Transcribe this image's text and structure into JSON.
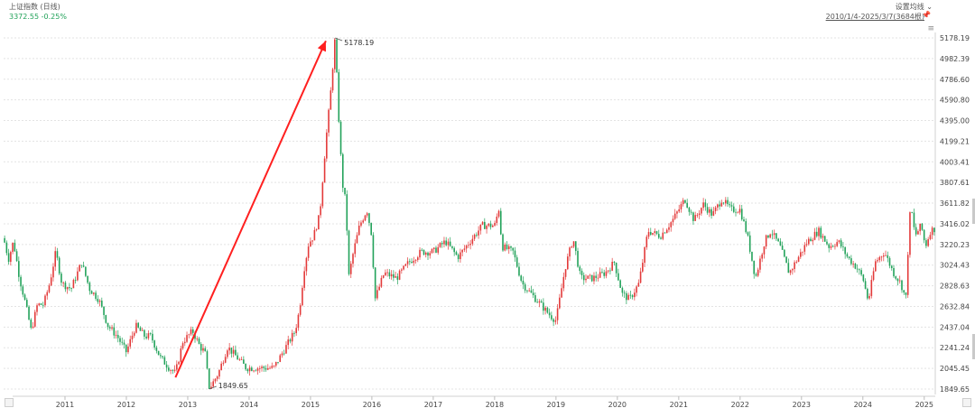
{
  "header": {
    "title": "上证指数 (日线)",
    "value": "3372.55 -0.25%",
    "setting_label": "设置均线",
    "setting_caret": "⌄",
    "range_label": "2010/1/4-2025/3/7(3684根)",
    "menu_glyph": "≡",
    "pin_glyph": "📌"
  },
  "colors": {
    "up": "#e33a3a",
    "down": "#22a25a",
    "arrow": "#ff2020",
    "grid": "#e3e3e3"
  },
  "chart_data": {
    "type": "candlestick",
    "title": "上证指数 (日线)",
    "date_range": [
      "2010/1/4",
      "2025/3/7"
    ],
    "bar_count": 3684,
    "ylim": [
      1849.65,
      5178.19
    ],
    "y_ticks": [
      5178.19,
      4982.39,
      4786.6,
      4590.8,
      4395.0,
      4199.21,
      4003.41,
      3807.61,
      3611.82,
      3416.02,
      3220.23,
      3024.43,
      2828.63,
      2632.84,
      2437.04,
      2241.24,
      2045.45,
      1849.65
    ],
    "x_ticks": [
      "2011",
      "2012",
      "2013",
      "2014",
      "2015",
      "2016",
      "2017",
      "2018",
      "2019",
      "2020",
      "2021",
      "2022",
      "2023",
      "2024",
      "2025"
    ],
    "x_ticks_t": [
      2011,
      2012,
      2013,
      2014,
      2015,
      2016,
      2017,
      2018,
      2019,
      2020,
      2021,
      2022,
      2023,
      2024,
      2025
    ],
    "x_range_t": [
      2010.0,
      2025.18
    ],
    "close_series": [
      {
        "t": 2010.0,
        "v": 3280
      },
      {
        "t": 2010.08,
        "v": 3080
      },
      {
        "t": 2010.16,
        "v": 3250
      },
      {
        "t": 2010.26,
        "v": 2900
      },
      {
        "t": 2010.36,
        "v": 2650
      },
      {
        "t": 2010.45,
        "v": 2400
      },
      {
        "t": 2010.55,
        "v": 2650
      },
      {
        "t": 2010.65,
        "v": 2650
      },
      {
        "t": 2010.75,
        "v": 2850
      },
      {
        "t": 2010.85,
        "v": 3150
      },
      {
        "t": 2010.95,
        "v": 2850
      },
      {
        "t": 2011.1,
        "v": 2800
      },
      {
        "t": 2011.27,
        "v": 3050
      },
      {
        "t": 2011.4,
        "v": 2800
      },
      {
        "t": 2011.55,
        "v": 2700
      },
      {
        "t": 2011.7,
        "v": 2450
      },
      {
        "t": 2011.85,
        "v": 2350
      },
      {
        "t": 2012.0,
        "v": 2200
      },
      {
        "t": 2012.15,
        "v": 2450
      },
      {
        "t": 2012.3,
        "v": 2350
      },
      {
        "t": 2012.4,
        "v": 2350
      },
      {
        "t": 2012.55,
        "v": 2150
      },
      {
        "t": 2012.7,
        "v": 2050
      },
      {
        "t": 2012.8,
        "v": 2000
      },
      {
        "t": 2012.92,
        "v": 2300
      },
      {
        "t": 2013.08,
        "v": 2400
      },
      {
        "t": 2013.2,
        "v": 2250
      },
      {
        "t": 2013.28,
        "v": 2200
      },
      {
        "t": 2013.35,
        "v": 1849.65
      },
      {
        "t": 2013.5,
        "v": 2000
      },
      {
        "t": 2013.65,
        "v": 2250
      },
      {
        "t": 2013.8,
        "v": 2150
      },
      {
        "t": 2013.95,
        "v": 2050
      },
      {
        "t": 2014.1,
        "v": 2050
      },
      {
        "t": 2014.25,
        "v": 2050
      },
      {
        "t": 2014.4,
        "v": 2050
      },
      {
        "t": 2014.55,
        "v": 2200
      },
      {
        "t": 2014.65,
        "v": 2300
      },
      {
        "t": 2014.75,
        "v": 2400
      },
      {
        "t": 2014.82,
        "v": 2600
      },
      {
        "t": 2014.9,
        "v": 3000
      },
      {
        "t": 2014.97,
        "v": 3230
      },
      {
        "t": 2015.05,
        "v": 3300
      },
      {
        "t": 2015.15,
        "v": 3500
      },
      {
        "t": 2015.25,
        "v": 4200
      },
      {
        "t": 2015.32,
        "v": 4600
      },
      {
        "t": 2015.4,
        "v": 5178.19
      },
      {
        "t": 2015.47,
        "v": 4300
      },
      {
        "t": 2015.52,
        "v": 3800
      },
      {
        "t": 2015.58,
        "v": 3600
      },
      {
        "t": 2015.62,
        "v": 2900
      },
      {
        "t": 2015.7,
        "v": 3150
      },
      {
        "t": 2015.8,
        "v": 3400
      },
      {
        "t": 2015.92,
        "v": 3550
      },
      {
        "t": 2016.0,
        "v": 3300
      },
      {
        "t": 2016.05,
        "v": 2700
      },
      {
        "t": 2016.2,
        "v": 2950
      },
      {
        "t": 2016.4,
        "v": 2900
      },
      {
        "t": 2016.6,
        "v": 3050
      },
      {
        "t": 2016.8,
        "v": 3150
      },
      {
        "t": 2017.0,
        "v": 3150
      },
      {
        "t": 2017.2,
        "v": 3250
      },
      {
        "t": 2017.4,
        "v": 3100
      },
      {
        "t": 2017.6,
        "v": 3250
      },
      {
        "t": 2017.8,
        "v": 3400
      },
      {
        "t": 2018.0,
        "v": 3400
      },
      {
        "t": 2018.07,
        "v": 3560
      },
      {
        "t": 2018.12,
        "v": 3200
      },
      {
        "t": 2018.3,
        "v": 3150
      },
      {
        "t": 2018.45,
        "v": 2850
      },
      {
        "t": 2018.6,
        "v": 2750
      },
      {
        "t": 2018.75,
        "v": 2650
      },
      {
        "t": 2018.9,
        "v": 2550
      },
      {
        "t": 2019.0,
        "v": 2500
      },
      {
        "t": 2019.15,
        "v": 3000
      },
      {
        "t": 2019.28,
        "v": 3280
      },
      {
        "t": 2019.4,
        "v": 2900
      },
      {
        "t": 2019.6,
        "v": 2900
      },
      {
        "t": 2019.8,
        "v": 2950
      },
      {
        "t": 2019.95,
        "v": 3050
      },
      {
        "t": 2020.08,
        "v": 2750
      },
      {
        "t": 2020.2,
        "v": 2700
      },
      {
        "t": 2020.35,
        "v": 2850
      },
      {
        "t": 2020.5,
        "v": 3350
      },
      {
        "t": 2020.7,
        "v": 3300
      },
      {
        "t": 2020.9,
        "v": 3450
      },
      {
        "t": 2021.1,
        "v": 3650
      },
      {
        "t": 2021.25,
        "v": 3450
      },
      {
        "t": 2021.4,
        "v": 3600
      },
      {
        "t": 2021.55,
        "v": 3500
      },
      {
        "t": 2021.7,
        "v": 3650
      },
      {
        "t": 2021.85,
        "v": 3550
      },
      {
        "t": 2022.0,
        "v": 3550
      },
      {
        "t": 2022.12,
        "v": 3300
      },
      {
        "t": 2022.25,
        "v": 2900
      },
      {
        "t": 2022.4,
        "v": 3250
      },
      {
        "t": 2022.5,
        "v": 3350
      },
      {
        "t": 2022.65,
        "v": 3200
      },
      {
        "t": 2022.8,
        "v": 2950
      },
      {
        "t": 2022.95,
        "v": 3100
      },
      {
        "t": 2023.1,
        "v": 3250
      },
      {
        "t": 2023.28,
        "v": 3350
      },
      {
        "t": 2023.45,
        "v": 3200
      },
      {
        "t": 2023.6,
        "v": 3250
      },
      {
        "t": 2023.75,
        "v": 3100
      },
      {
        "t": 2023.9,
        "v": 3000
      },
      {
        "t": 2024.0,
        "v": 2900
      },
      {
        "t": 2024.09,
        "v": 2680
      },
      {
        "t": 2024.2,
        "v": 3050
      },
      {
        "t": 2024.35,
        "v": 3150
      },
      {
        "t": 2024.5,
        "v": 2950
      },
      {
        "t": 2024.62,
        "v": 2850
      },
      {
        "t": 2024.7,
        "v": 2700
      },
      {
        "t": 2024.75,
        "v": 3350
      },
      {
        "t": 2024.78,
        "v": 3600
      },
      {
        "t": 2024.85,
        "v": 3300
      },
      {
        "t": 2024.95,
        "v": 3400
      },
      {
        "t": 2025.02,
        "v": 3200
      },
      {
        "t": 2025.1,
        "v": 3350
      },
      {
        "t": 2025.18,
        "v": 3372.55
      }
    ],
    "annotations": [
      {
        "label": "5178.19",
        "t": 2015.4,
        "v": 5178.19
      },
      {
        "label": "1849.65",
        "t": 2013.35,
        "v": 1849.65
      }
    ],
    "arrow": {
      "from": {
        "t": 2012.8,
        "v": 1960
      },
      "to": {
        "t": 2015.25,
        "v": 5150
      }
    },
    "grid": true
  }
}
